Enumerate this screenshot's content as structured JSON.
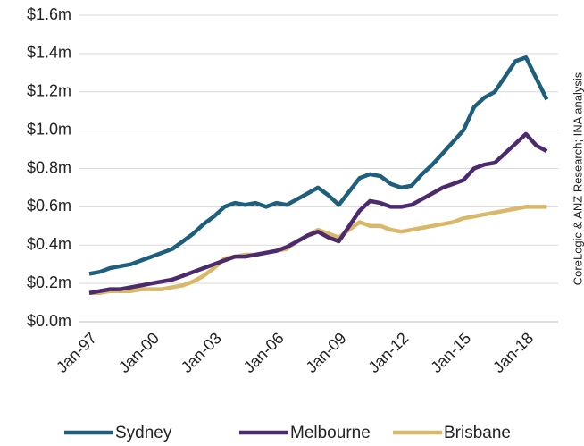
{
  "chart_data": {
    "type": "line",
    "source": "CoreLogic & ANZ Research; INA analysis",
    "categories": [
      "Jan-97",
      "Jul-97",
      "Jan-98",
      "Jul-98",
      "Jan-99",
      "Jul-99",
      "Jan-00",
      "Jul-00",
      "Jan-01",
      "Jul-01",
      "Jan-02",
      "Jul-02",
      "Jan-03",
      "Jul-03",
      "Jan-04",
      "Jul-04",
      "Jan-05",
      "Jul-05",
      "Jan-06",
      "Jul-06",
      "Jan-07",
      "Jul-07",
      "Jan-08",
      "Jul-08",
      "Jan-09",
      "Jul-09",
      "Jan-10",
      "Jul-10",
      "Jan-11",
      "Jul-11",
      "Jan-12",
      "Jul-12",
      "Jan-13",
      "Jul-13",
      "Jan-14",
      "Jul-14",
      "Jan-15",
      "Jul-15",
      "Jan-16",
      "Jul-16",
      "Jan-17",
      "Jul-17",
      "Jan-18",
      "Jul-18",
      "Jan-19"
    ],
    "xticks": [
      "Jan-97",
      "Jan-00",
      "Jan-03",
      "Jan-06",
      "Jan-09",
      "Jan-12",
      "Jan-15",
      "Jan-18"
    ],
    "series": [
      {
        "name": "Sydney",
        "color": "#1d5f7c",
        "values": [
          0.25,
          0.26,
          0.28,
          0.29,
          0.3,
          0.32,
          0.34,
          0.36,
          0.38,
          0.42,
          0.46,
          0.51,
          0.55,
          0.6,
          0.62,
          0.61,
          0.62,
          0.6,
          0.62,
          0.61,
          0.64,
          0.67,
          0.7,
          0.66,
          0.61,
          0.68,
          0.75,
          0.77,
          0.76,
          0.72,
          0.7,
          0.71,
          0.77,
          0.82,
          0.88,
          0.94,
          1.0,
          1.12,
          1.17,
          1.2,
          1.28,
          1.36,
          1.38,
          1.27,
          1.16
        ]
      },
      {
        "name": "Melbourne",
        "color": "#4b2a6e",
        "values": [
          0.15,
          0.16,
          0.17,
          0.17,
          0.18,
          0.19,
          0.2,
          0.21,
          0.22,
          0.24,
          0.26,
          0.28,
          0.3,
          0.32,
          0.34,
          0.34,
          0.35,
          0.36,
          0.37,
          0.39,
          0.42,
          0.45,
          0.47,
          0.44,
          0.42,
          0.5,
          0.58,
          0.63,
          0.62,
          0.6,
          0.6,
          0.61,
          0.64,
          0.67,
          0.7,
          0.72,
          0.74,
          0.8,
          0.82,
          0.83,
          0.88,
          0.93,
          0.98,
          0.92,
          0.89
        ]
      },
      {
        "name": "Brisbane",
        "color": "#d9b86a",
        "values": [
          0.15,
          0.15,
          0.16,
          0.16,
          0.16,
          0.17,
          0.17,
          0.17,
          0.18,
          0.19,
          0.21,
          0.24,
          0.28,
          0.33,
          0.34,
          0.35,
          0.35,
          0.36,
          0.37,
          0.38,
          0.42,
          0.45,
          0.48,
          0.46,
          0.44,
          0.48,
          0.52,
          0.5,
          0.5,
          0.48,
          0.47,
          0.48,
          0.49,
          0.5,
          0.51,
          0.52,
          0.54,
          0.55,
          0.56,
          0.57,
          0.58,
          0.59,
          0.6,
          0.6,
          0.6
        ]
      }
    ],
    "ylim": [
      0,
      1.6
    ],
    "yticks": [
      {
        "value": 0,
        "label": "$0.0m"
      },
      {
        "value": 0.2,
        "label": "$0.2m"
      },
      {
        "value": 0.4,
        "label": "$0.4m"
      },
      {
        "value": 0.6,
        "label": "$0.6m"
      },
      {
        "value": 0.8,
        "label": "$0.8m"
      },
      {
        "value": 1.0,
        "label": "$1.0m"
      },
      {
        "value": 1.2,
        "label": "$1.2m"
      },
      {
        "value": 1.4,
        "label": "$1.4m"
      },
      {
        "value": 1.6,
        "label": "$1.6m"
      }
    ],
    "grid": true,
    "legend": "bottom"
  }
}
